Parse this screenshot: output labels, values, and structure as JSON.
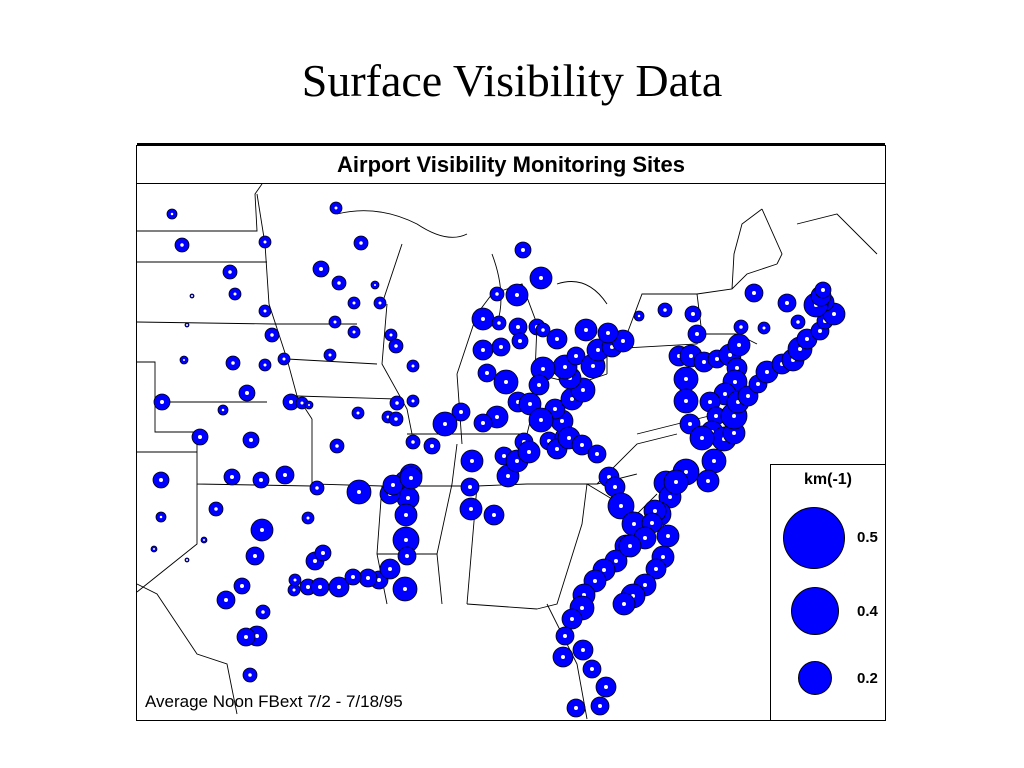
{
  "slide": {
    "title": "Surface Visibility Data"
  },
  "map": {
    "title": "Airport Visibility Monitoring Sites",
    "caption": "Average Noon FBext 7/2 - 7/18/95",
    "marker_color": "#0000ff",
    "border_color": "#000000"
  },
  "legend": {
    "title": "km(-1)",
    "items": [
      {
        "label": "0.5",
        "value": 0.5
      },
      {
        "label": "0.4",
        "value": 0.4
      },
      {
        "label": "0.2",
        "value": 0.2
      }
    ]
  }
}
